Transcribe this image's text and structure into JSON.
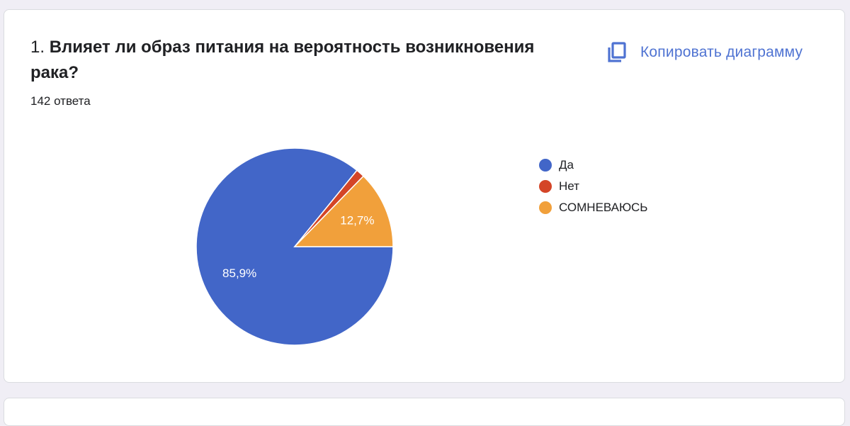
{
  "question": {
    "number": "1.",
    "text": "Влияет ли образ питания на вероятность возникновения рака?",
    "response_count": "142 ответа"
  },
  "toolbar": {
    "copy_label": "Копировать диаграмму",
    "copy_icon": "copy-icon"
  },
  "colors": {
    "accent": "#4f73d2"
  },
  "chart_data": {
    "type": "pie",
    "title": "",
    "slices": [
      {
        "name": "Да",
        "value": 85.9,
        "label": "85,9%",
        "color": "#4266c8"
      },
      {
        "name": "Нет",
        "value": 1.4,
        "label": "",
        "color": "#d44527"
      },
      {
        "name": "СОМНЕВАЮСЬ",
        "value": 12.7,
        "label": "12,7%",
        "color": "#f1a03b"
      }
    ],
    "legend_position": "right"
  }
}
